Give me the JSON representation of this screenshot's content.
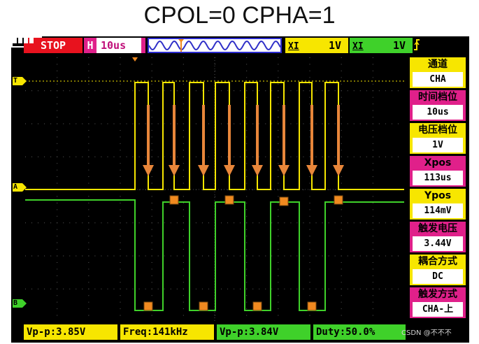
{
  "caption": "CPOL=0 CPHA=1",
  "topbar": {
    "run_state": "STOP",
    "timebase_label": "H",
    "timebase_value": "10us",
    "ch_a": {
      "label": "XI",
      "value": "1V",
      "color": "#f7e600"
    },
    "ch_b": {
      "label": "XI",
      "value": "1V",
      "color": "#3fd12a"
    },
    "trigger_icon": "trigger-edge-icon",
    "battery_icon": "battery-icon",
    "battery_level": 0.8
  },
  "markers": {
    "trigger": "T",
    "ch_a": "A",
    "ch_b": "B"
  },
  "panel": [
    {
      "label": "通道",
      "value": "CHA",
      "color": "#f7e600"
    },
    {
      "label": "时间档位",
      "value": "10us",
      "color": "#e0208a"
    },
    {
      "label": "电压档位",
      "value": "1V",
      "color": "#f7e600"
    },
    {
      "label": "Xpos",
      "value": "113us",
      "color": "#e0208a"
    },
    {
      "label": "Ypos",
      "value": "114mV",
      "color": "#f7e600"
    },
    {
      "label": "触发电压",
      "value": "3.44V",
      "color": "#e0208a"
    },
    {
      "label": "耦合方式",
      "value": "DC",
      "color": "#f7e600"
    },
    {
      "label": "触发方式",
      "value": "CHA-上",
      "color": "#e0208a"
    }
  ],
  "bottombar": {
    "ch_a_vpp": "Vp-p:3.85V",
    "freq": "Freq:141kHz",
    "ch_b_vpp": "Vp-p:3.84V",
    "duty": "Duty:50.0%"
  },
  "watermark": "CSDN @不不不",
  "colors": {
    "ch_a": "#f7e600",
    "ch_b": "#3fd12a",
    "arrow": "#e8863a",
    "sample_marker": "#f08a20",
    "stop": "#e8121e",
    "accent": "#e0208a"
  }
}
